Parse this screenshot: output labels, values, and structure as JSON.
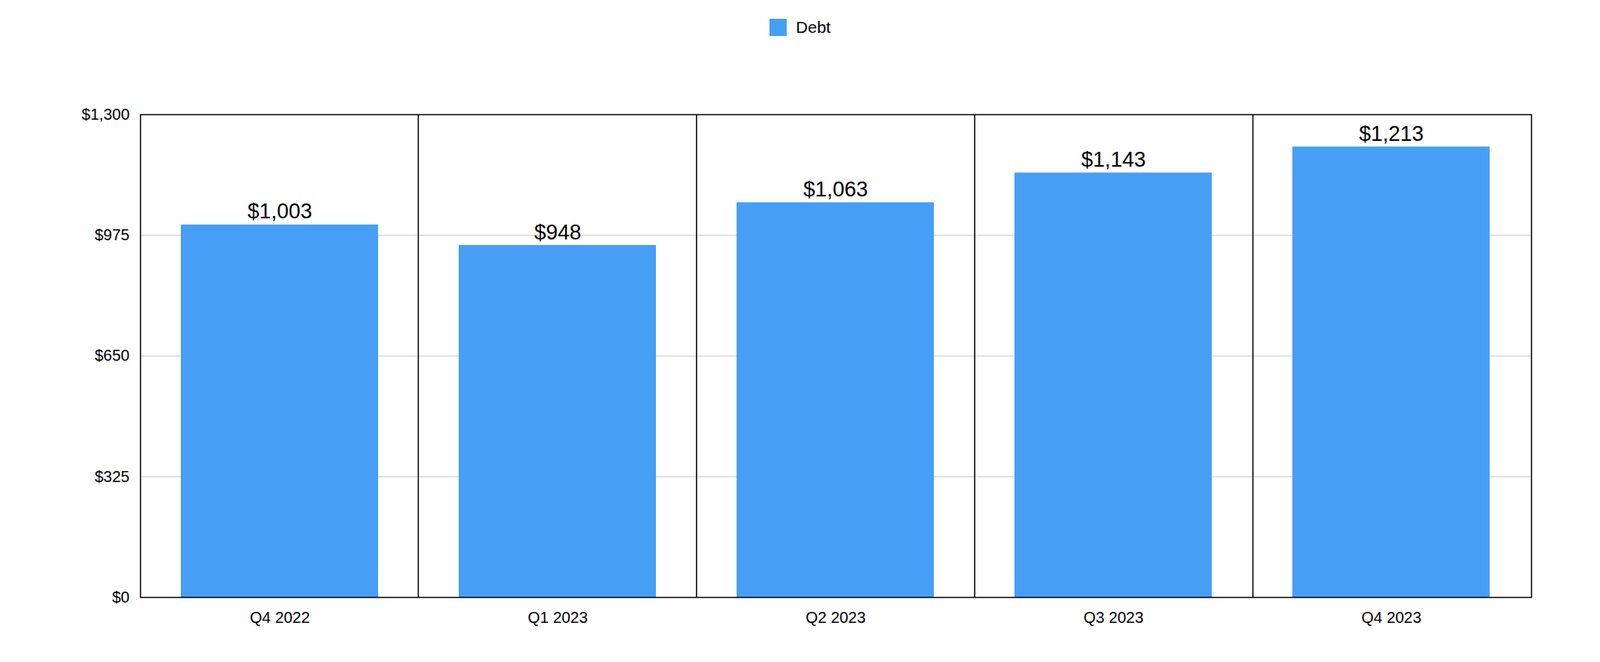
{
  "chart_data": {
    "type": "bar",
    "categories": [
      "Q4 2022",
      "Q1 2023",
      "Q2 2023",
      "Q3 2023",
      "Q4 2023"
    ],
    "series": [
      {
        "name": "Debt",
        "color": "#479ff5",
        "values": [
          1003,
          948,
          1063,
          1143,
          1213
        ]
      }
    ],
    "value_labels": [
      "$1,003",
      "$948",
      "$1,063",
      "$1,143",
      "$1,213"
    ],
    "data_labels": true,
    "ylim": [
      0,
      1300
    ],
    "yticks": [
      {
        "value": 0,
        "label": "$0"
      },
      {
        "value": 325,
        "label": "$325"
      },
      {
        "value": 650,
        "label": "$650"
      },
      {
        "value": 975,
        "label": "$975"
      },
      {
        "value": 1300,
        "label": "$1,300"
      }
    ],
    "grid": true,
    "legend": "top"
  }
}
